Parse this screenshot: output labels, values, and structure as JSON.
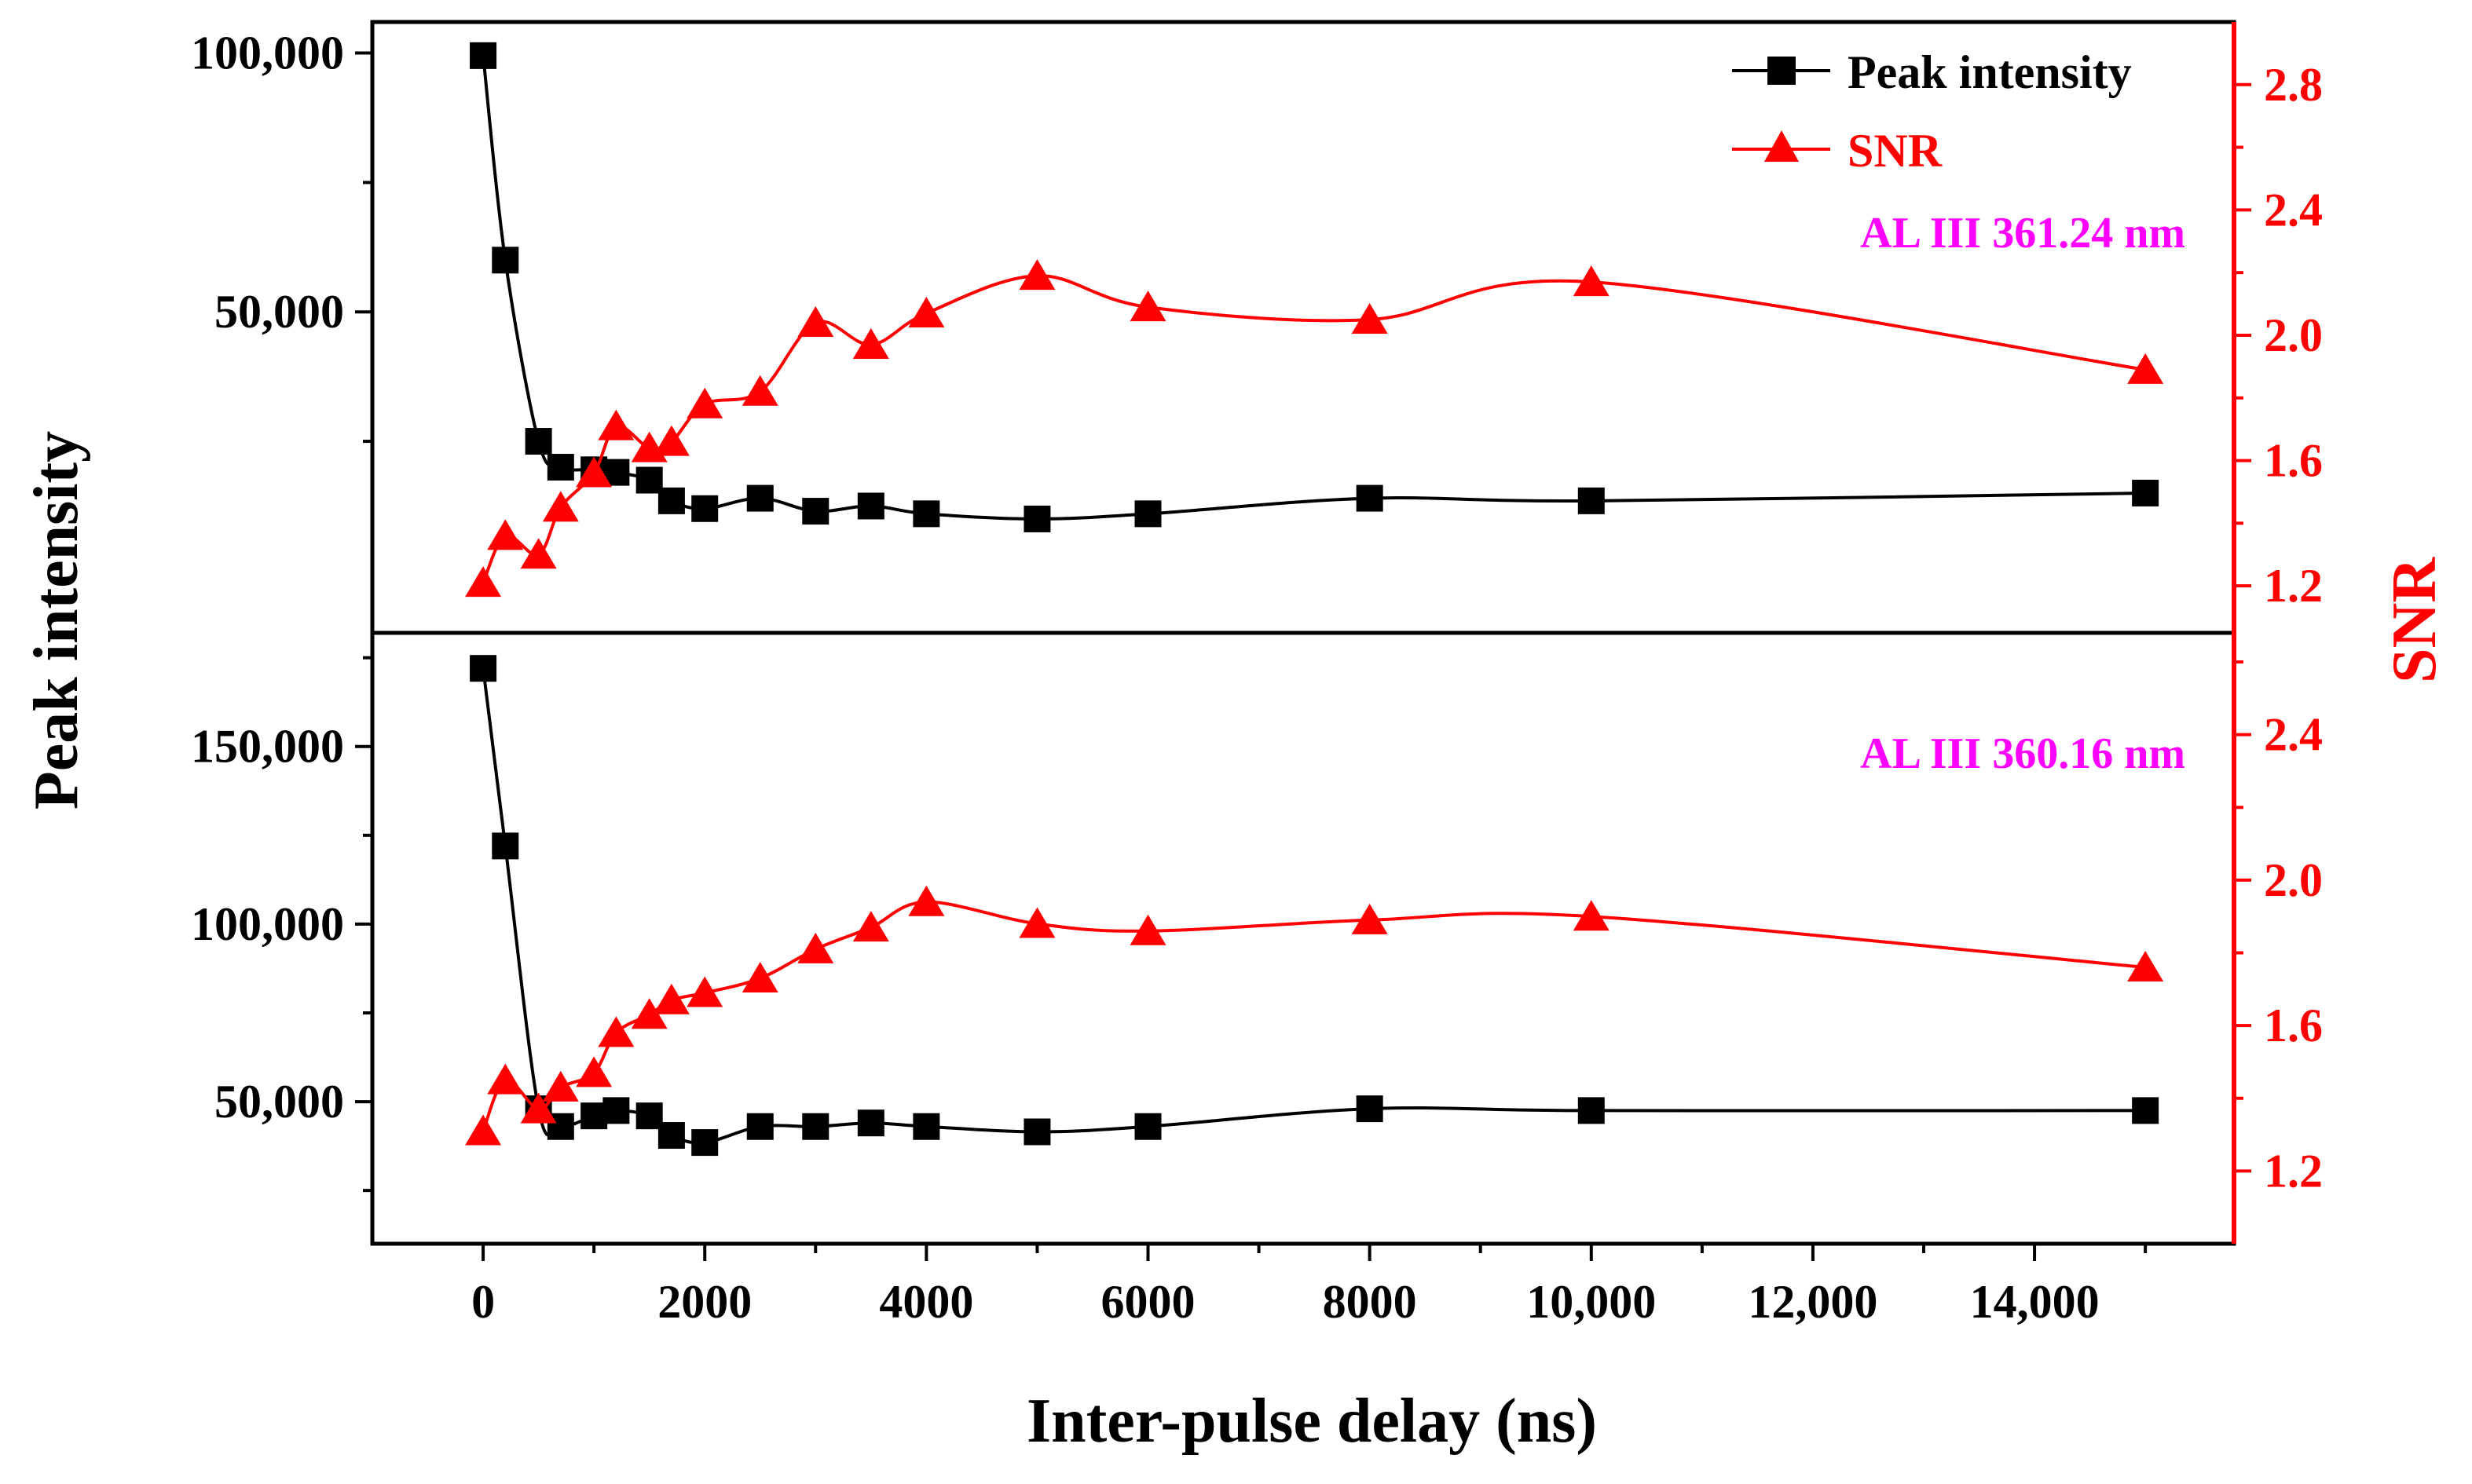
{
  "colors": {
    "intensity": "#000000",
    "snr": "#ff0000",
    "annotation": "#ff00ff",
    "frame": "#000000"
  },
  "chart_data": {
    "type": "line",
    "xlabel": "Inter-pulse delay (ns)",
    "ylabel_left": "Peak intensity",
    "ylabel_right": "SNR",
    "xlim": [
      -1000,
      15800
    ],
    "xticks": [
      0,
      2000,
      4000,
      6000,
      8000,
      10000,
      12000,
      14000
    ],
    "xtick_labels": [
      "0",
      "2000",
      "4000",
      "6000",
      "8000",
      "10,000",
      "12,000",
      "14,000"
    ],
    "legend": {
      "position": "top-right",
      "entries": [
        {
          "name": "Peak intensity",
          "marker": "square",
          "color": "#000000"
        },
        {
          "name": "SNR",
          "marker": "triangle",
          "color": "#ff0000"
        }
      ]
    },
    "panels": [
      {
        "annotation": "AL III 361.24 nm",
        "left_ylim": [
          -12000,
          106000
        ],
        "left_ticks": [
          50000,
          100000
        ],
        "left_tick_labels": [
          "50,000",
          "100,000"
        ],
        "right_ylim": [
          1.05,
          3.0
        ],
        "right_ticks": [
          1.2,
          1.6,
          2.0,
          2.4,
          2.8
        ],
        "right_tick_labels": [
          "1.2",
          "1.6",
          "2.0",
          "2.4",
          "2.8"
        ],
        "series": [
          {
            "name": "Peak intensity",
            "axis": "left",
            "x": [
              0,
              200,
              500,
              700,
              1000,
              1200,
              1500,
              1700,
              2000,
              2500,
              3000,
              3500,
              4000,
              5000,
              6000,
              8000,
              10000,
              15000
            ],
            "values": [
              99500,
              60000,
              25000,
              20000,
              19500,
              19000,
              17500,
              13500,
              12000,
              14000,
              11500,
              12500,
              11000,
              10000,
              11000,
              14000,
              13500,
              15000
            ]
          },
          {
            "name": "SNR",
            "axis": "right",
            "x": [
              0,
              200,
              500,
              700,
              1000,
              1200,
              1500,
              1700,
              2000,
              2500,
              3000,
              3500,
              4000,
              5000,
              6000,
              8000,
              10000,
              15000
            ],
            "values": [
              1.21,
              1.36,
              1.3,
              1.45,
              1.56,
              1.71,
              1.64,
              1.66,
              1.78,
              1.82,
              2.04,
              1.97,
              2.07,
              2.19,
              2.09,
              2.05,
              2.17,
              1.89
            ]
          }
        ]
      },
      {
        "annotation": "AL III 360.16 nm",
        "left_ylim": [
          10000,
          182000
        ],
        "left_ticks": [
          50000,
          100000,
          150000
        ],
        "left_tick_labels": [
          "50,000",
          "100,000",
          "150,000"
        ],
        "right_ylim": [
          1.0,
          2.68
        ],
        "right_ticks": [
          1.2,
          1.6,
          2.0,
          2.4
        ],
        "right_tick_labels": [
          "1.2",
          "1.6",
          "2.0",
          "2.4"
        ],
        "series": [
          {
            "name": "Peak intensity",
            "axis": "left",
            "x": [
              0,
              200,
              500,
              700,
              1000,
              1200,
              1500,
              1700,
              2000,
              2500,
              3000,
              3500,
              4000,
              5000,
              6000,
              8000,
              10000,
              15000
            ],
            "values": [
              172000,
              122000,
              48000,
              43000,
              46000,
              47500,
              46000,
              40500,
              38500,
              43000,
              43000,
              44000,
              43000,
              41500,
              43000,
              48000,
              47500,
              47500
            ]
          },
          {
            "name": "SNR",
            "axis": "right",
            "x": [
              0,
              200,
              500,
              700,
              1000,
              1200,
              1500,
              1700,
              2000,
              2500,
              3000,
              3500,
              4000,
              5000,
              6000,
              8000,
              10000,
              15000
            ],
            "values": [
              1.31,
              1.45,
              1.37,
              1.43,
              1.47,
              1.58,
              1.63,
              1.67,
              1.69,
              1.73,
              1.81,
              1.87,
              1.94,
              1.88,
              1.86,
              1.89,
              1.9,
              1.76
            ]
          }
        ]
      }
    ]
  }
}
